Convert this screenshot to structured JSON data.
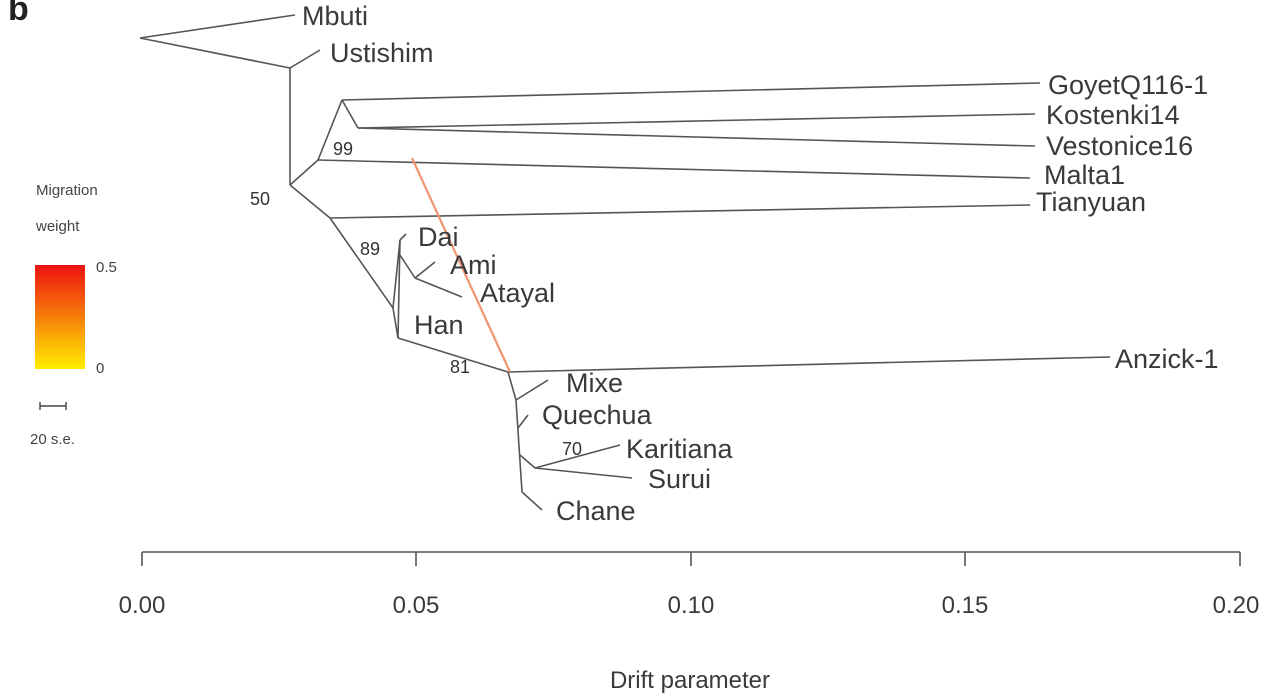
{
  "panel_letter": "b",
  "legend": {
    "title_line1": "Migration",
    "title_line2": "weight",
    "max_label": "0.5",
    "min_label": "0",
    "scale_label": "20 s.e.",
    "color_high": "#ee1111",
    "color_low": "#ffee00"
  },
  "axis": {
    "title": "Drift parameter",
    "ticks": [
      "0.00",
      "0.05",
      "0.10",
      "0.15",
      "0.20"
    ]
  },
  "leaves": [
    "Mbuti",
    "Ustishim",
    "GoyetQ116-1",
    "Kostenki14",
    "Vestonice16",
    "Malta1",
    "Tianyuan",
    "Dai",
    "Ami",
    "Atayal",
    "Han",
    "Anzick-1",
    "Mixe",
    "Quechua",
    "Karitiana",
    "Surui",
    "Chane"
  ],
  "support_values": {
    "n50": "50",
    "n99": "99",
    "n89": "89",
    "n81": "81",
    "n70": "70"
  },
  "migration_edge": {
    "color": "#f0906a",
    "weight": 0.3
  }
}
